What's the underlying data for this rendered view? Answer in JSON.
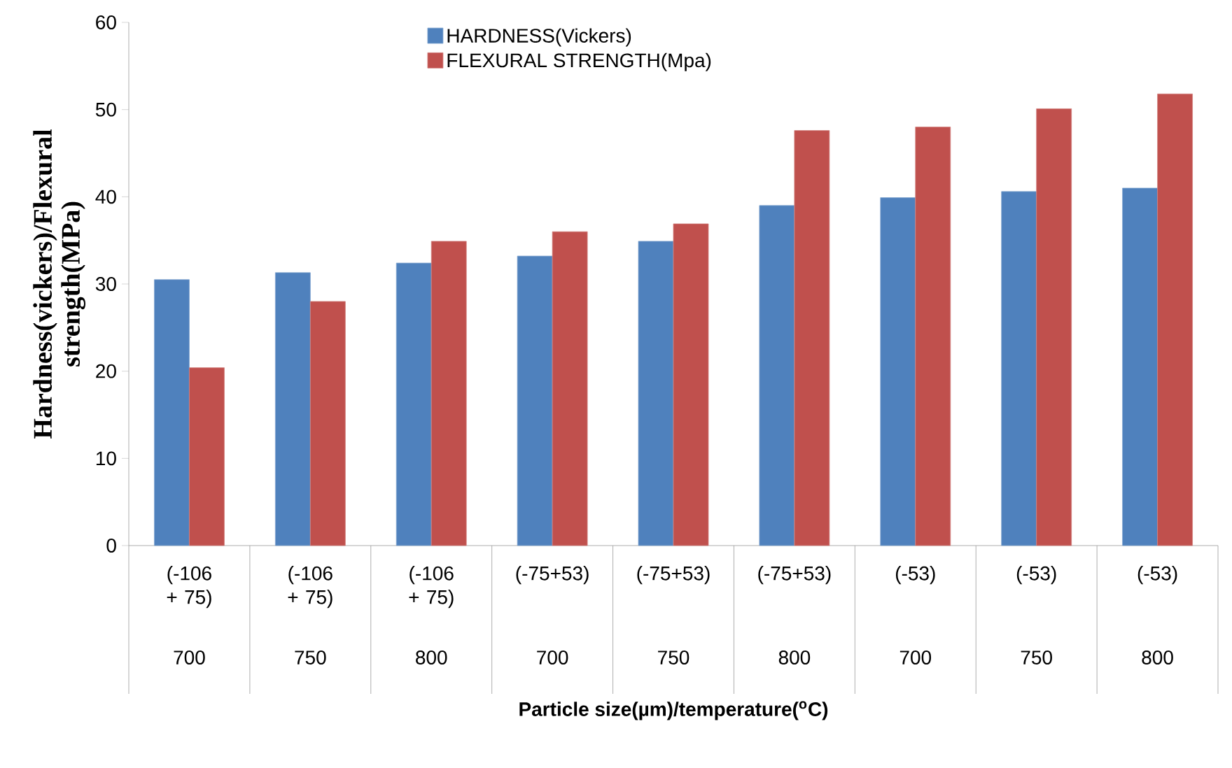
{
  "chart_data": {
    "type": "bar",
    "xlabel": "Particle size(µm)/temperature($^{o}$C)",
    "ylabel": "Hardness(vickers)/Flexural strength(MPa)",
    "categories": [
      "(-106 + 75)",
      "(-106 + 75)",
      "(-106 + 75)",
      "(-75+53)",
      "(-75+53)",
      "(-75+53)",
      "(-53)",
      "(-53)",
      "(-53)"
    ],
    "annotations": [
      "700",
      "750",
      "800",
      "700",
      "750",
      "800",
      "700",
      "750",
      "800"
    ],
    "series": [
      {
        "name": "HARDNESS(Vickers)",
        "color": "#4f81bd",
        "values": [
          30.5,
          31.3,
          32.4,
          33.2,
          34.9,
          39.0,
          39.9,
          40.6,
          41.0
        ]
      },
      {
        "name": "FLEXURAL STRENGTH(Mpa)",
        "color": "#c0504d",
        "values": [
          20.4,
          28.0,
          34.9,
          36.0,
          36.9,
          47.6,
          48.0,
          50.1,
          51.8
        ]
      }
    ],
    "ylim": [
      0,
      60
    ],
    "yticks": [
      0,
      10,
      20,
      30,
      40,
      50,
      60
    ],
    "legend": "top",
    "grid": false
  }
}
